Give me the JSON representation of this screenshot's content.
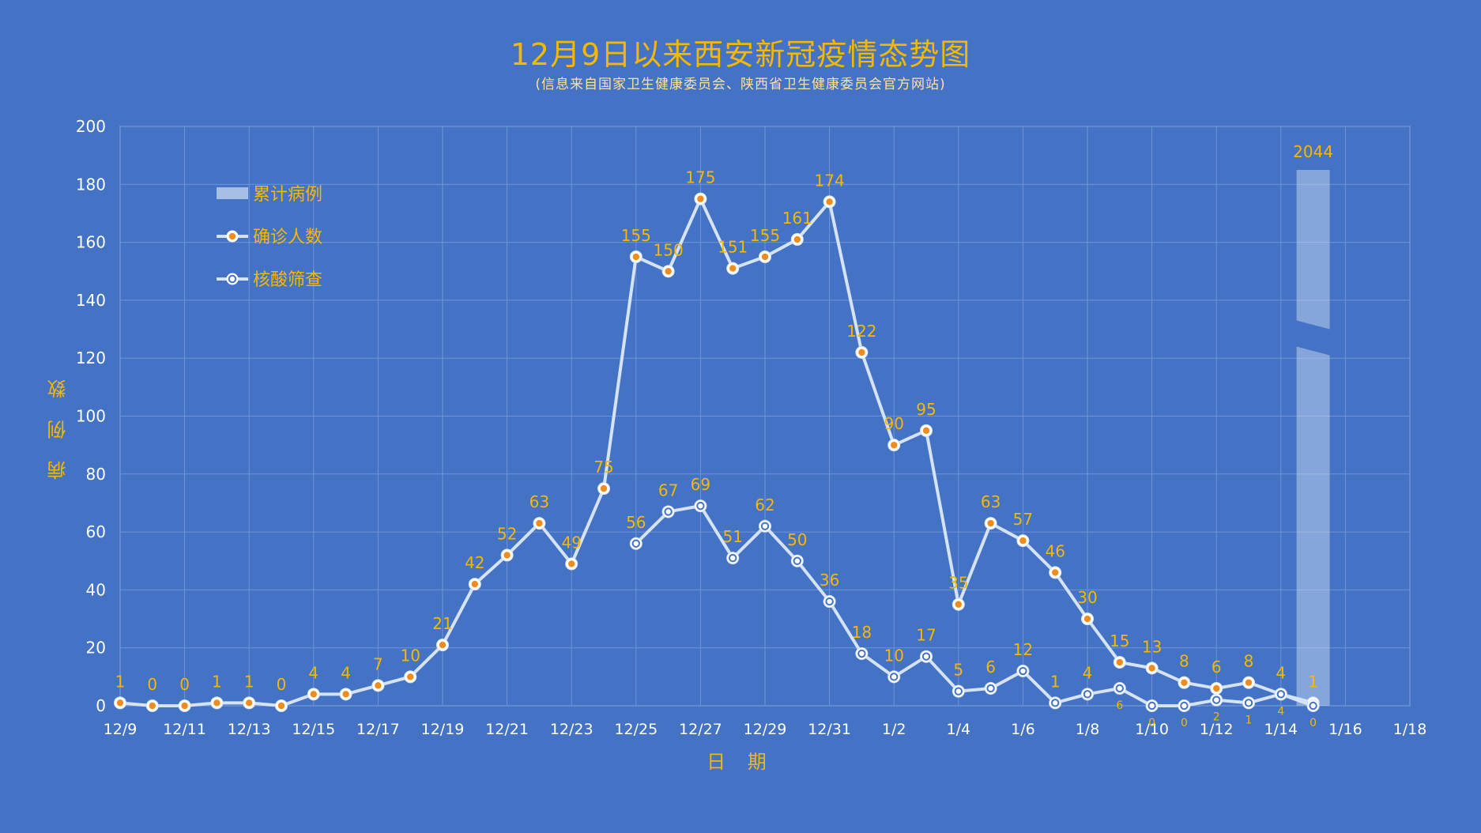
{
  "chart_data": {
    "type": "line",
    "title": "12月9日以来西安新冠疫情态势图",
    "subtitle": "(信息来自国家卫生健康委员会、陕西省卫生健康委员会官方网站)",
    "xlabel": "日 期",
    "ylabel": "病 例 数",
    "ylim": [
      0,
      200
    ],
    "y_ticks": [
      "0",
      "20",
      "40",
      "60",
      "80",
      "100",
      "120",
      "140",
      "160",
      "180",
      "200"
    ],
    "x_ticks": [
      "12/9",
      "12/11",
      "12/13",
      "12/15",
      "12/17",
      "12/19",
      "12/21",
      "12/23",
      "12/25",
      "12/27",
      "12/29",
      "12/31",
      "1/2",
      "1/4",
      "1/6",
      "1/8",
      "1/10",
      "1/12",
      "1/14",
      "1/16",
      "1/18"
    ],
    "grid": true,
    "legend_position": "top-left",
    "series": [
      {
        "name": "确诊人数",
        "color": "#d5e3f7",
        "marker_fill": "#f08c1e",
        "values": [
          1,
          0,
          0,
          1,
          1,
          0,
          4,
          4,
          7,
          10,
          21,
          42,
          52,
          63,
          49,
          75,
          155,
          150,
          175,
          151,
          155,
          161,
          174,
          122,
          90,
          95,
          35,
          63,
          57,
          46,
          30,
          15,
          13,
          8,
          6,
          8,
          4,
          1
        ],
        "labels": [
          "1",
          "0",
          "0",
          "1",
          "1",
          "0",
          "4",
          "4",
          "7",
          "10",
          "21",
          "42",
          "52",
          "63",
          "49",
          "75",
          "155",
          "150",
          "175",
          "151",
          "155",
          "161",
          "174",
          "122",
          "90",
          "95",
          "35",
          "63",
          "57",
          "46",
          "30",
          "15",
          "13",
          "8",
          "6",
          "8",
          "4",
          "1"
        ]
      },
      {
        "name": "核酸筛查",
        "color": "#d5e3f7",
        "marker_fill": "#ffffff",
        "start_index": 16,
        "values": [
          56,
          67,
          69,
          51,
          62,
          50,
          36,
          18,
          10,
          17,
          5,
          6,
          12,
          1,
          4,
          6,
          0,
          0,
          2,
          1,
          4,
          0
        ],
        "labels": [
          "56",
          "67",
          "69",
          "51",
          "62",
          "50",
          "36",
          "18",
          "10",
          "17",
          "5",
          "6",
          "12",
          "1",
          "4",
          "6",
          "0",
          "0",
          "2",
          "1",
          "4",
          "0"
        ]
      }
    ],
    "cumulative": {
      "name": "累计病例",
      "value": 2044,
      "label": "2044",
      "date_index": 37,
      "color": "#c8d8f0"
    }
  }
}
